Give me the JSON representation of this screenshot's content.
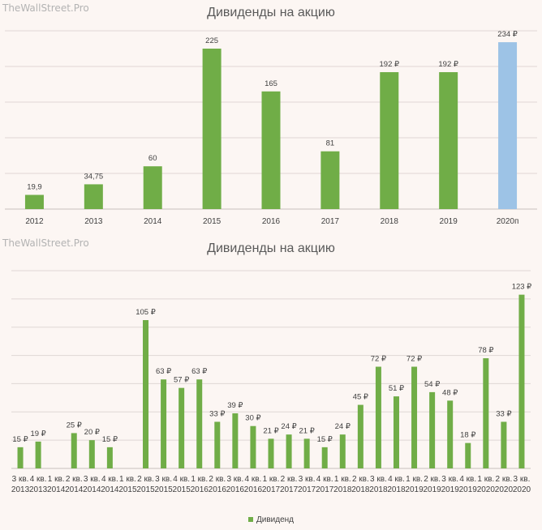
{
  "watermark": "TheWallStreet.Pro",
  "chart_data": [
    {
      "type": "bar",
      "title": "Дивиденды на акцию",
      "categories": [
        "2012",
        "2013",
        "2014",
        "2015",
        "2016",
        "2017",
        "2018",
        "2019",
        "2020п"
      ],
      "values": [
        19.9,
        34.75,
        60,
        225,
        165,
        81,
        192,
        192,
        234
      ],
      "data_labels": [
        "19,9",
        "34,75",
        "60",
        "225",
        "165",
        "81",
        "192 ₽",
        "192 ₽",
        "234 ₽"
      ],
      "colors": [
        "#70ad47",
        "#70ad47",
        "#70ad47",
        "#70ad47",
        "#70ad47",
        "#70ad47",
        "#70ad47",
        "#70ad47",
        "#9dc3e6"
      ],
      "ylim": [
        0,
        250
      ],
      "grid": true
    },
    {
      "type": "bar",
      "title": "Дивиденды на акцию",
      "series": [
        {
          "name": "Дивиденд"
        }
      ],
      "categories": [
        {
          "q": "3 кв.",
          "y": "2013"
        },
        {
          "q": "4 кв.",
          "y": "2013"
        },
        {
          "q": "1 кв.",
          "y": "2014"
        },
        {
          "q": "2 кв.",
          "y": "2014"
        },
        {
          "q": "3 кв.",
          "y": "2014"
        },
        {
          "q": "4 кв.",
          "y": "2014"
        },
        {
          "q": "1 кв.",
          "y": "2015"
        },
        {
          "q": "2 кв.",
          "y": "2015"
        },
        {
          "q": "3 кв.",
          "y": "2015"
        },
        {
          "q": "4 кв.",
          "y": "2015"
        },
        {
          "q": "1 кв.",
          "y": "2016"
        },
        {
          "q": "2 кв.",
          "y": "2016"
        },
        {
          "q": "3 кв.",
          "y": "2016"
        },
        {
          "q": "4 кв.",
          "y": "2016"
        },
        {
          "q": "1 кв.",
          "y": "2017"
        },
        {
          "q": "2 кв.",
          "y": "2017"
        },
        {
          "q": "3 кв.",
          "y": "2017"
        },
        {
          "q": "4 кв.",
          "y": "2017"
        },
        {
          "q": "1 кв.",
          "y": "2018"
        },
        {
          "q": "2 кв.",
          "y": "2018"
        },
        {
          "q": "3 кв.",
          "y": "2018"
        },
        {
          "q": "4 кв.",
          "y": "2018"
        },
        {
          "q": "1 кв.",
          "y": "2019"
        },
        {
          "q": "2 кв.",
          "y": "2019"
        },
        {
          "q": "3 кв.",
          "y": "2019"
        },
        {
          "q": "4 кв.",
          "y": "2019"
        },
        {
          "q": "1 кв.",
          "y": "2020"
        },
        {
          "q": "2 кв.",
          "y": "2020"
        },
        {
          "q": "3 кв.",
          "y": "2020"
        }
      ],
      "values": [
        15,
        19,
        null,
        25,
        20,
        15,
        null,
        105,
        63,
        57,
        63,
        33,
        39,
        30,
        21,
        24,
        21,
        15,
        24,
        45,
        72,
        51,
        72,
        54,
        48,
        18,
        78,
        33,
        123
      ],
      "data_labels": [
        "15 ₽",
        "19 ₽",
        "",
        "25 ₽",
        "20 ₽",
        "15 ₽",
        "",
        "105 ₽",
        "63 ₽",
        "57 ₽",
        "63 ₽",
        "33 ₽",
        "39 ₽",
        "30 ₽",
        "21 ₽",
        "24 ₽",
        "21 ₽",
        "15 ₽",
        "24 ₽",
        "45 ₽",
        "72 ₽",
        "51 ₽",
        "72 ₽",
        "54 ₽",
        "48 ₽",
        "18 ₽",
        "78 ₽",
        "33 ₽",
        "123 ₽"
      ],
      "color": "#70ad47",
      "ylim": [
        0,
        140
      ],
      "grid": true,
      "legend": "bottom"
    }
  ]
}
